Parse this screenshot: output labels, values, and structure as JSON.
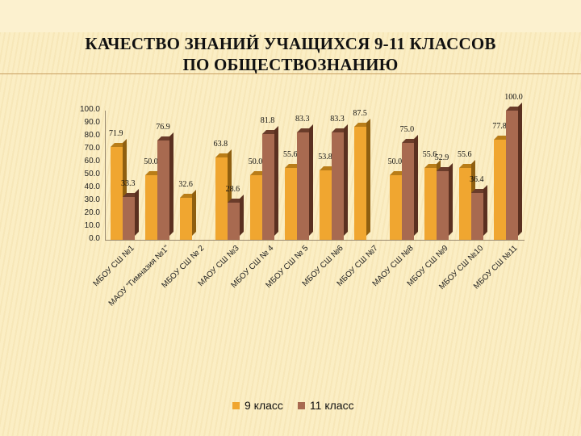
{
  "title": {
    "line1": "КАЧЕСТВО ЗНАНИЙ УЧАЩИХСЯ 9-11 КЛАССОВ",
    "line2": "ПО ОБЩЕСТВОЗНАНИЮ"
  },
  "legend": {
    "s9": "9 класс",
    "s11": "11 класс"
  },
  "y_ticks": [
    "100.0",
    "90.0",
    "80.0",
    "70.0",
    "60.0",
    "50.0",
    "40.0",
    "30.0",
    "20.0",
    "10.0",
    "0.0"
  ],
  "colors": {
    "s9": "#f0a630",
    "s11": "#a86a50"
  },
  "chart_data": {
    "type": "bar",
    "title": "КАЧЕСТВО ЗНАНИЙ УЧАЩИХСЯ 9-11 КЛАССОВ ПО ОБЩЕСТВОЗНАНИЮ",
    "xlabel": "",
    "ylabel": "",
    "ylim": [
      0,
      100
    ],
    "grid": false,
    "legend_position": "bottom",
    "style": "3d clustered column",
    "categories": [
      "МБОУ СШ №1",
      "МАОУ \"Гимназия №1\"",
      "МБОУ СШ № 2",
      "МАОУ СШ №3",
      "МБОУ СШ № 4",
      "МБОУ СШ № 5",
      "МБОУ СШ №6",
      "МБОУ СШ №7",
      "МАОУ СШ №8",
      "МБОУ СШ №9",
      "МБОУ СШ №10",
      "МБОУ СШ №11"
    ],
    "series": [
      {
        "name": "9 класс",
        "values": [
          71.9,
          50.0,
          32.6,
          63.8,
          50.0,
          55.6,
          53.8,
          87.5,
          50.0,
          55.6,
          55.6,
          77.8
        ]
      },
      {
        "name": "11 класс",
        "values": [
          33.3,
          76.9,
          null,
          28.6,
          81.8,
          83.3,
          83.3,
          null,
          75.0,
          52.9,
          36.4,
          100.0
        ]
      }
    ],
    "value_labels": {
      "9 класс": [
        "71.9",
        "50.0",
        "32.6",
        "63.8",
        "50.0",
        "55.6",
        "53.8",
        "87.5",
        "50.0",
        "55.6",
        "55.6",
        "77.8"
      ],
      "11 класс": [
        "33.3",
        "76.9",
        "",
        "28.6",
        "81.8",
        "83.3",
        "83.3",
        "",
        "75.0",
        "52.9",
        "36.4",
        "100.0"
      ]
    },
    "y_tick_labels": [
      "0.0",
      "10.0",
      "20.0",
      "30.0",
      "40.0",
      "50.0",
      "60.0",
      "70.0",
      "80.0",
      "90.0",
      "100.0"
    ]
  }
}
